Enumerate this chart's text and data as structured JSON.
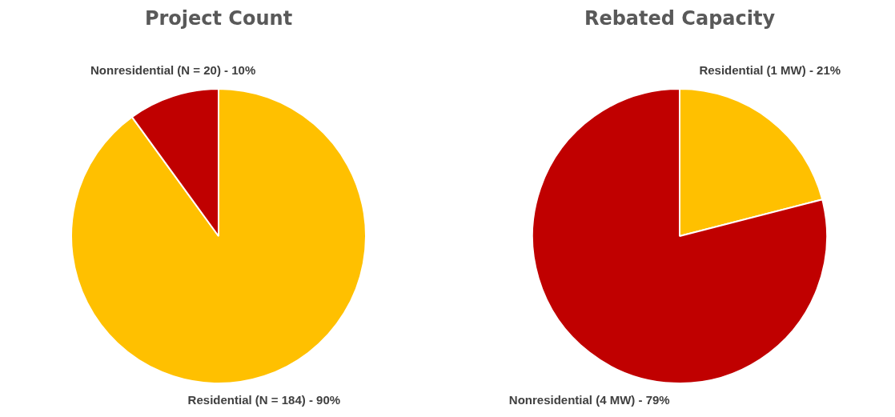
{
  "chart_data": [
    {
      "type": "pie",
      "title": "Project Count",
      "categories": [
        "Residential (N = 184) - 90%",
        "Nonresidential (N = 20) - 10%"
      ],
      "values": [
        90,
        10
      ],
      "colors": [
        "#ffc000",
        "#c00000"
      ],
      "legend": false
    },
    {
      "type": "pie",
      "title": "Rebated Capacity",
      "categories": [
        "Residential (1 MW) - 21%",
        "Nonresidential (4 MW) - 79%"
      ],
      "values": [
        21,
        79
      ],
      "colors": [
        "#ffc000",
        "#c00000"
      ],
      "legend": false
    }
  ]
}
